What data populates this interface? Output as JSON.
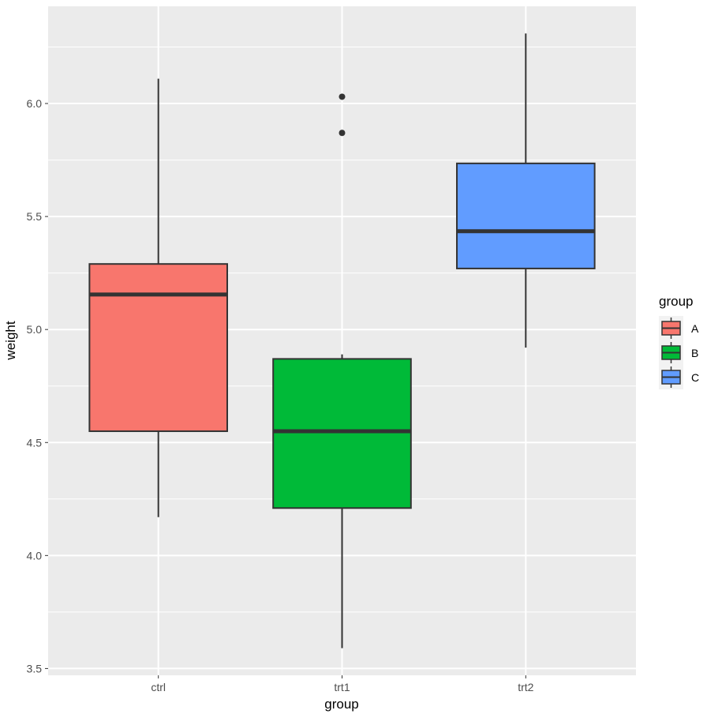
{
  "chart_data": {
    "type": "boxplot",
    "title": "",
    "xlabel": "group",
    "ylabel": "weight",
    "ylim": [
      3.47,
      6.43
    ],
    "y_ticks": [
      3.5,
      4.0,
      4.5,
      5.0,
      5.5,
      6.0
    ],
    "y_tick_labels": [
      "3.5",
      "4.0",
      "4.5",
      "5.0",
      "5.5",
      "6.0"
    ],
    "categories": [
      "ctrl",
      "trt1",
      "trt2"
    ],
    "boxes": [
      {
        "category": "ctrl",
        "whisker_low": 4.17,
        "q1": 4.55,
        "median": 5.155,
        "q3": 5.29,
        "whisker_high": 6.11,
        "outliers": [],
        "fill": "#F8766D",
        "legend_key": "A"
      },
      {
        "category": "trt1",
        "whisker_low": 3.59,
        "q1": 4.21,
        "median": 4.55,
        "q3": 4.87,
        "whisker_high": 4.89,
        "outliers": [
          5.87,
          6.03
        ],
        "fill": "#00BA38",
        "legend_key": "B"
      },
      {
        "category": "trt2",
        "whisker_low": 4.92,
        "q1": 5.27,
        "median": 5.435,
        "q3": 5.735,
        "whisker_high": 6.31,
        "outliers": [],
        "fill": "#619CFF",
        "legend_key": "C"
      }
    ],
    "grid": true,
    "legend": {
      "title": "group",
      "position": "right",
      "entries": [
        "A",
        "B",
        "C"
      ]
    },
    "colors": {
      "panel_bg": "#EBEBEB",
      "grid": "#FFFFFF",
      "box_stroke": "#333333"
    }
  }
}
